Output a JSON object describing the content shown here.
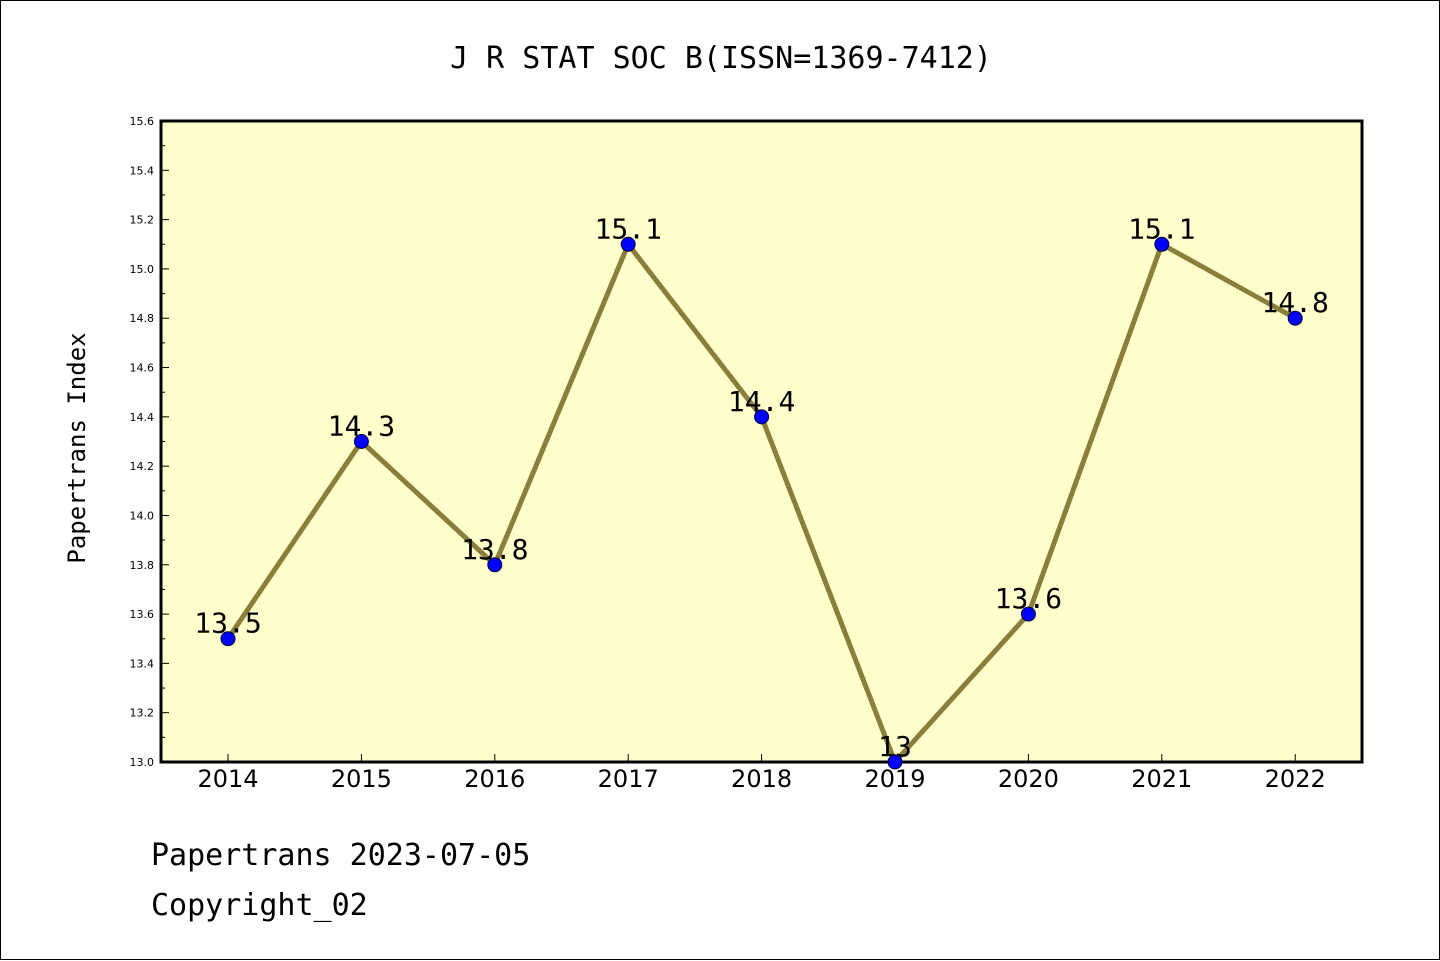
{
  "footer": {
    "line1": "Papertrans 2023-07-05",
    "line2": "Copyright_02"
  },
  "colors": {
    "plot_background": "#ffffcc",
    "line": "#8b7d3a",
    "marker": "#0000ff"
  },
  "chart_data": {
    "type": "line",
    "title": "J R STAT SOC B(ISSN=1369-7412)",
    "xlabel": "",
    "ylabel": "Papertrans Index",
    "categories": [
      "2014",
      "2015",
      "2016",
      "2017",
      "2018",
      "2019",
      "2020",
      "2021",
      "2022"
    ],
    "values": [
      13.5,
      14.3,
      13.8,
      15.1,
      14.4,
      13.0,
      13.6,
      15.1,
      14.8
    ],
    "data_labels": [
      "13.5",
      "14.3",
      "13.8",
      "15.1",
      "14.4",
      "13",
      "13.6",
      "15.1",
      "14.8"
    ],
    "ylim": [
      13.0,
      15.6
    ],
    "yticks": [
      "13.0",
      "13.2",
      "13.4",
      "13.6",
      "13.8",
      "14.0",
      "14.2",
      "14.4",
      "14.6",
      "14.8",
      "15.0",
      "15.2",
      "15.4",
      "15.6"
    ],
    "grid": false,
    "legend": "none"
  }
}
